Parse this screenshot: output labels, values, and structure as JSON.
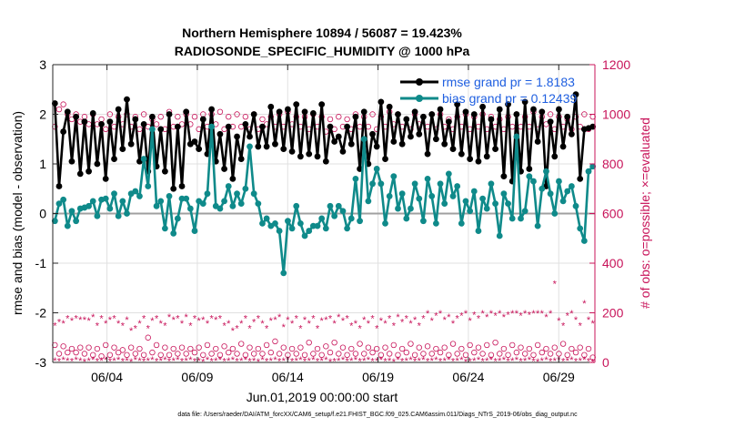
{
  "chart_data": {
    "type": "line",
    "title": "Northern Hemisphere 10894 / 56087 = 19.423%",
    "subtitle": "RADIOSONDE_SPECIFIC_HUMIDITY @ 1000 hPa",
    "xlabel": "Jun.01,2019 00:00:00 start",
    "ylabel_left": "rmse and bias (model - observation)",
    "ylabel_right": "# of obs: o=possible; ×=evaluated",
    "footer": "data file: /Users/raeder/DAI/ATM_forcXX/CAM6_setup/f.e21.FHIST_BGC.f09_025.CAM6assim.011/Diags_NTrS_2019-06/obs_diag_output.nc",
    "xlim": [
      1.0,
      31.0
    ],
    "ylim_left": [
      -3,
      3
    ],
    "ylim_right": [
      0,
      1200
    ],
    "x_ticks": [
      4,
      9,
      14,
      19,
      24,
      29
    ],
    "x_tick_labels": [
      "06/04",
      "06/09",
      "06/14",
      "06/19",
      "06/24",
      "06/29"
    ],
    "y_ticks_left": [
      -3,
      -2,
      -1,
      0,
      1,
      2,
      3
    ],
    "y_tick_labels_left": [
      "-3",
      "-2",
      "-1",
      "0",
      "1",
      "2",
      "3"
    ],
    "y_ticks_right": [
      0,
      200,
      400,
      600,
      800,
      1000,
      1200
    ],
    "y_tick_labels_right": [
      "0",
      "200",
      "400",
      "600",
      "800",
      "1000",
      "1200"
    ],
    "grid": true,
    "legend_position": "top-right",
    "colors": {
      "rmse": "#000000",
      "bias": "#0f8a8a",
      "obs": "#c8145a",
      "zero_line": "#a0a0a0",
      "grid": "#e0e0e0"
    },
    "series": [
      {
        "name": "rmse grand pr = 1.8183",
        "values": [
          2.22,
          0.55,
          1.65,
          2.05,
          1.05,
          1.95,
          0.8,
          1.85,
          0.85,
          2.02,
          1.0,
          1.8,
          0.7,
          1.85,
          1.1,
          2.1,
          1.3,
          2.3,
          1.4,
          1.9,
          1.05,
          1.8,
          0.85,
          1.95,
          0.95,
          1.7,
          0.85,
          2.0,
          0.5,
          1.75,
          0.55,
          2.05,
          1.4,
          1.45,
          1.3,
          1.9,
          1.2,
          2.1,
          1.05,
          1.6,
          0.9,
          1.75,
          0.7,
          1.55,
          1.1,
          1.8,
          1.55,
          2.0,
          1.35,
          1.75,
          1.35,
          2.15,
          1.4,
          2.05,
          1.3,
          2.1,
          1.25,
          2.2,
          1.15,
          2.05,
          1.2,
          2.02,
          1.15,
          2.2,
          1.05,
          1.75,
          1.45,
          1.55,
          1.25,
          1.75,
          1.4,
          1.95,
          0.9,
          2.05,
          1.0,
          1.6,
          1.35,
          2.25,
          1.1,
          2.15,
          1.45,
          2.0,
          1.4,
          1.9,
          1.55,
          2.05,
          1.6,
          1.95,
          1.2,
          2.0,
          1.5,
          2.1,
          1.4,
          1.85,
          1.3,
          2.2,
          1.2,
          2.05,
          1.1,
          2.0,
          1.05,
          2.15,
          1.15,
          1.9,
          1.3,
          2.1,
          0.75,
          2.2,
          0.65,
          2.0,
          0.85,
          2.25,
          0.9,
          2.1,
          1.45,
          2.05,
          0.55,
          1.85,
          1.15,
          2.1,
          1.35,
          1.95,
          1.6,
          2.4,
          0.7,
          1.7,
          1.72,
          1.75
        ]
      },
      {
        "name": "bias grand pr = 0.12439",
        "values": [
          -0.15,
          0.2,
          0.28,
          -0.25,
          0.05,
          -0.15,
          0.1,
          0.12,
          0.15,
          0.25,
          -0.05,
          0.28,
          0.3,
          0.1,
          0.4,
          -0.05,
          0.25,
          0.0,
          0.4,
          0.45,
          0.35,
          1.1,
          0.55,
          1.7,
          0.15,
          0.25,
          -0.3,
          0.35,
          -0.4,
          -0.1,
          0.3,
          0.3,
          0.1,
          -0.35,
          0.25,
          0.2,
          0.4,
          1.75,
          0.15,
          0.1,
          0.25,
          0.55,
          0.15,
          0.4,
          0.2,
          0.5,
          1.35,
          0.4,
          0.2,
          -0.2,
          -0.1,
          -0.25,
          -0.2,
          -0.35,
          -1.2,
          -0.15,
          -0.3,
          0.15,
          -0.2,
          -0.45,
          -0.35,
          -0.25,
          -0.25,
          -0.1,
          -0.3,
          0.15,
          -0.05,
          0.15,
          0.05,
          -0.3,
          -0.1,
          0.7,
          -0.15,
          1.5,
          0.25,
          0.6,
          0.9,
          0.6,
          -0.2,
          0.35,
          0.75,
          0.1,
          0.4,
          -0.1,
          0.1,
          0.6,
          0.3,
          -0.15,
          0.7,
          0.35,
          -0.2,
          0.6,
          0.2,
          0.8,
          0.35,
          0.55,
          -0.2,
          0.25,
          0.05,
          0.45,
          -0.35,
          0.3,
          0.1,
          0.6,
          0.2,
          -0.45,
          0.4,
          0.2,
          -0.1,
          1.55,
          -0.1,
          0.05,
          0.75,
          0.65,
          -0.25,
          0.5,
          0.85,
          0.4,
          0.0,
          0.65,
          0.25,
          0.45,
          0.55,
          0.15,
          -0.3,
          -0.55,
          0.85,
          0.95
        ]
      }
    ],
    "obs_possible": [
      950,
      1020,
      1040,
      1000,
      980,
      1000,
      970,
      990,
      960,
      1000,
      960,
      980,
      940,
      1000,
      950,
      990,
      960,
      1000,
      950,
      990,
      940,
      1000,
      950,
      980,
      960,
      990,
      940,
      1010,
      950,
      990,
      960,
      1000,
      960,
      990,
      940,
      1000,
      950,
      1000,
      960,
      1010,
      940,
      990,
      950,
      1000,
      950,
      990,
      940,
      1000,
      940,
      980,
      960,
      990,
      950,
      1000,
      950,
      1010,
      960,
      990,
      950,
      990,
      940,
      1000,
      950,
      990,
      930,
      980,
      940,
      990,
      950,
      980,
      940,
      1000,
      950,
      990,
      950,
      1000,
      940,
      990,
      950,
      1010,
      960,
      1000,
      950,
      980,
      940,
      1000,
      960,
      990,
      950,
      1000,
      940,
      1000,
      950,
      980,
      940,
      990,
      950,
      1000,
      940,
      990,
      950,
      1000,
      940,
      990,
      950,
      980,
      940,
      990,
      950,
      1000,
      950,
      990,
      950,
      1010,
      940,
      990,
      960,
      1000,
      940,
      990,
      950,
      980,
      940,
      990,
      950,
      1000,
      940,
      990
    ],
    "obs_possible_low": [
      70,
      35,
      65,
      40,
      55,
      40,
      60,
      35,
      60,
      30,
      55,
      25,
      70,
      30,
      60,
      40,
      50,
      30,
      60,
      35,
      55,
      30,
      100,
      40,
      70,
      30,
      60,
      30,
      55,
      35,
      60,
      35,
      55,
      40,
      60,
      30,
      70,
      35,
      55,
      30,
      65,
      40,
      55,
      35,
      75,
      30,
      60,
      35,
      55,
      35,
      70,
      40,
      85,
      35,
      60,
      30,
      55,
      35,
      60,
      30,
      80,
      35,
      55,
      30,
      65,
      40,
      80,
      35,
      60,
      30,
      55,
      35,
      75,
      35,
      60,
      40,
      55,
      30,
      60,
      35,
      70,
      30,
      55,
      40,
      75,
      30,
      60,
      35,
      65,
      35,
      55,
      40,
      60,
      30,
      75,
      35,
      55,
      30,
      70,
      40,
      60,
      35,
      70,
      30,
      80,
      35,
      55,
      30,
      70,
      40,
      60,
      35,
      55,
      30,
      70,
      40,
      55,
      35,
      60,
      35,
      75,
      30,
      55,
      40,
      60,
      30,
      55,
      20
    ],
    "obs_evaluated": [
      150,
      165,
      160,
      180,
      170,
      180,
      175,
      175,
      170,
      185,
      150,
      180,
      160,
      175,
      180,
      160,
      150,
      175,
      130,
      140,
      160,
      180,
      140,
      170,
      180,
      160,
      150,
      185,
      175,
      180,
      160,
      185,
      150,
      180,
      170,
      175,
      160,
      180,
      175,
      180,
      150,
      160,
      130,
      140,
      160,
      180,
      140,
      165,
      180,
      160,
      140,
      170,
      175,
      185,
      145,
      175,
      160,
      180,
      140,
      175,
      160,
      180,
      140,
      170,
      175,
      180,
      160,
      185,
      170,
      180,
      150,
      160,
      140,
      175,
      160,
      180,
      140,
      170,
      160,
      180,
      150,
      185,
      165,
      180,
      160,
      175,
      150,
      180,
      200,
      170,
      190,
      200,
      175,
      185,
      160,
      180,
      190,
      200,
      170,
      195,
      180,
      200,
      185,
      200,
      190,
      200,
      185,
      195,
      200,
      200,
      190,
      200,
      195,
      200,
      200,
      200,
      185,
      200,
      320,
      170,
      150,
      190,
      200,
      175,
      150,
      240,
      175,
      160
    ],
    "obs_evaluated_low": [
      10,
      8,
      12,
      10,
      8,
      12,
      10,
      6,
      10,
      12,
      8,
      10,
      12,
      8,
      10,
      12,
      8,
      10,
      6,
      12,
      10,
      8,
      10,
      12,
      8,
      10,
      12,
      8,
      10,
      12,
      8,
      10,
      12,
      8,
      10,
      6,
      12,
      8,
      10,
      12,
      8,
      10,
      12,
      8,
      10,
      12,
      8,
      10,
      6,
      12,
      8,
      10,
      12,
      8,
      10,
      12,
      8,
      10,
      12,
      8,
      10,
      12,
      8,
      10,
      12,
      6,
      8,
      10,
      12,
      8,
      10,
      12,
      8,
      10,
      12,
      8,
      10,
      12,
      8,
      10,
      6,
      12,
      8,
      10,
      12,
      8,
      10,
      12,
      8,
      10,
      12,
      8,
      10,
      12,
      8,
      10,
      12,
      6,
      8,
      10,
      12,
      8,
      10,
      12,
      8,
      10,
      12,
      8,
      10,
      12,
      8,
      10,
      12,
      8,
      6,
      10,
      12,
      8,
      10,
      12,
      8,
      10,
      12,
      8,
      10,
      12,
      8,
      4
    ]
  }
}
